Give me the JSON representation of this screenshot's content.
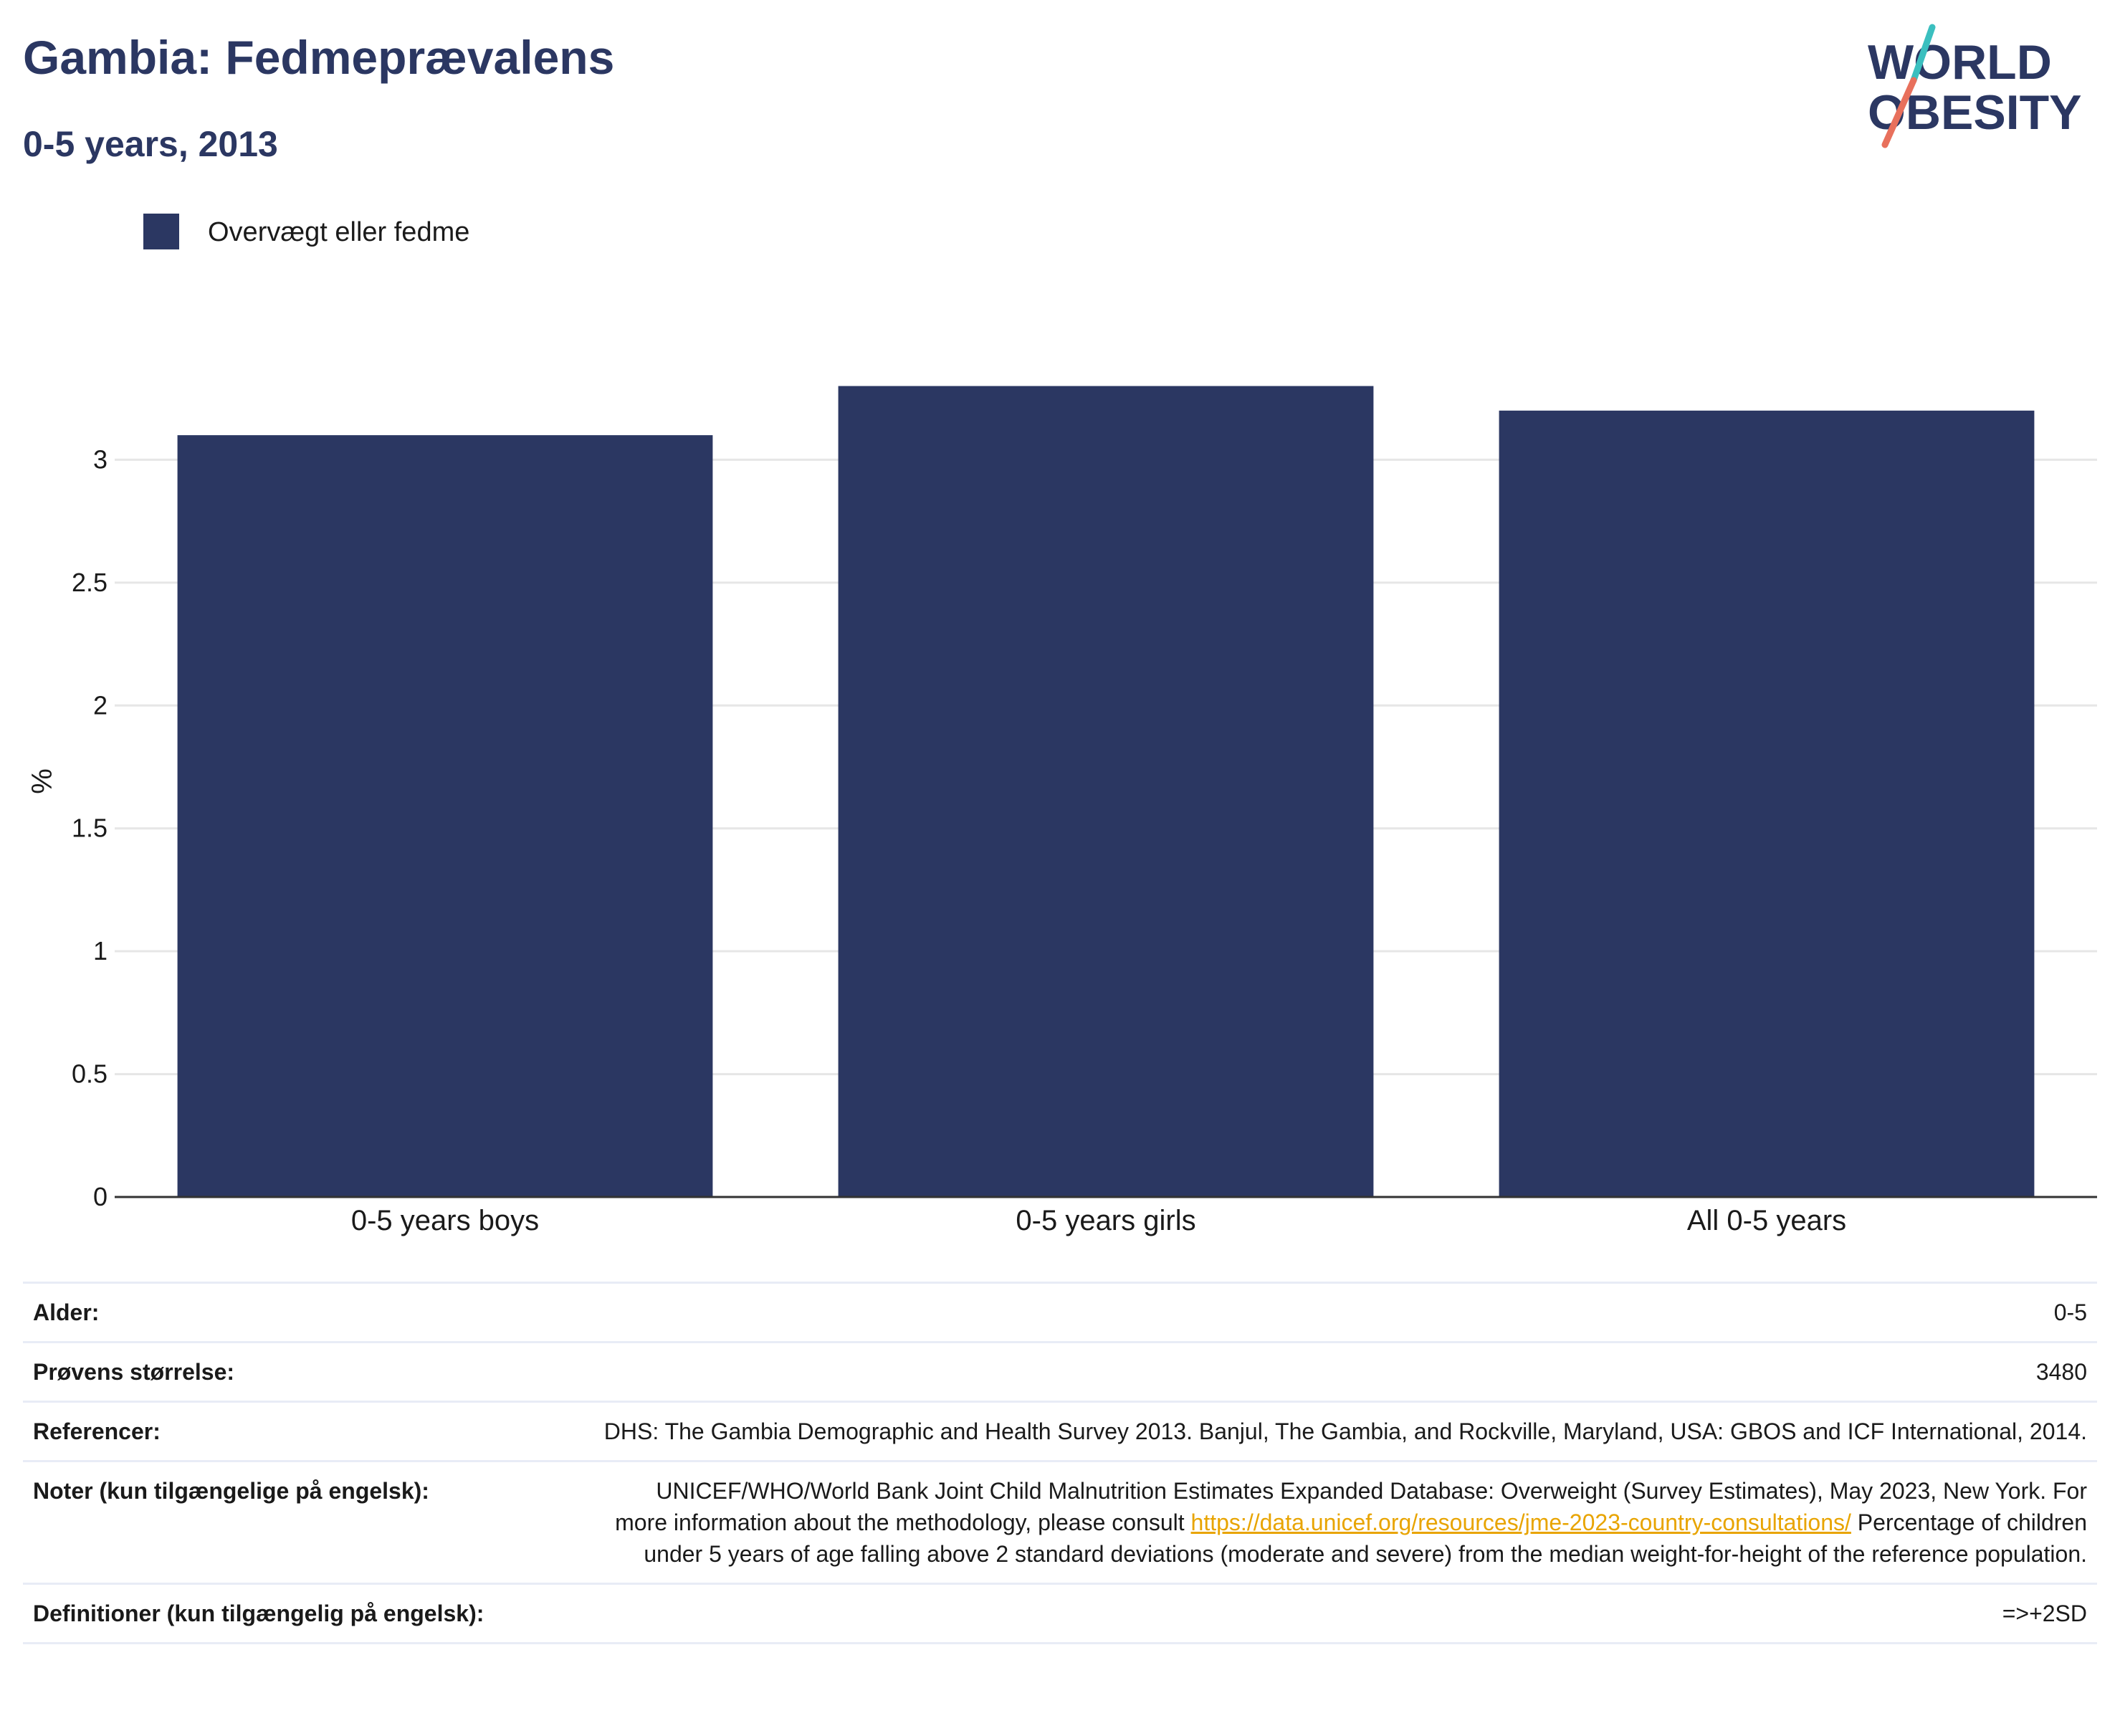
{
  "header": {
    "title": "Gambia: Fedmeprævalens",
    "subtitle": "0-5 years, 2013"
  },
  "logo": {
    "line1": "WORLD",
    "line2": "OBESITY",
    "accent_top": "#3bbfbf",
    "accent_bottom": "#e8705c",
    "text_color": "#2b3762"
  },
  "chart_data": {
    "type": "bar",
    "categories": [
      "0-5 years boys",
      "0-5 years girls",
      "All 0-5 years"
    ],
    "series": [
      {
        "name": "Overvægt eller fedme",
        "values": [
          3.1,
          3.3,
          3.2
        ],
        "color": "#2b3762"
      }
    ],
    "ylabel": "%",
    "ylim": [
      0,
      3.5
    ],
    "yticks": [
      0,
      0.5,
      1,
      1.5,
      2,
      2.5,
      3
    ],
    "ytick_labels": [
      "0",
      "0.5",
      "1",
      "1.5",
      "2",
      "2.5",
      "3"
    ],
    "grid": true,
    "legend_position": "top-left"
  },
  "meta": {
    "age_label": "Alder:",
    "age_value": "0-5",
    "sample_label": "Prøvens størrelse:",
    "sample_value": "3480",
    "refs_label": "Referencer:",
    "refs_value": "DHS: The Gambia Demographic and Health Survey 2013. Banjul, The Gambia, and Rockville, Maryland, USA: GBOS and ICF International, 2014.",
    "notes_label": "Noter (kun tilgængelige på engelsk):",
    "notes_before_link": "UNICEF/WHO/World Bank Joint Child Malnutrition Estimates Expanded Database: Overweight (Survey Estimates), May 2023, New York. For more information about the methodology, please consult ",
    "notes_link": "https://data.unicef.org/resources/jme-2023-country-consultations/",
    "notes_after_link": " Percentage of children under 5 years of age falling above 2 standard deviations (moderate and severe) from the median weight-for-height of the reference population.",
    "defs_label": "Definitioner (kun tilgængelig på engelsk):",
    "defs_value": "=>+2SD"
  }
}
